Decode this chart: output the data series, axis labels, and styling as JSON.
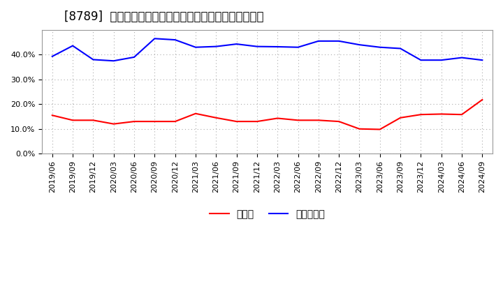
{
  "title": "[8789]  現頲金、有利子負債の総資産に対する比率の推移",
  "x_labels": [
    "2019/06",
    "2019/09",
    "2019/12",
    "2020/03",
    "2020/06",
    "2020/09",
    "2020/12",
    "2021/03",
    "2021/06",
    "2021/09",
    "2021/12",
    "2022/03",
    "2022/06",
    "2022/09",
    "2022/12",
    "2023/03",
    "2023/06",
    "2023/09",
    "2023/12",
    "2024/03",
    "2024/06",
    "2024/09"
  ],
  "cash": [
    0.155,
    0.135,
    0.135,
    0.12,
    0.13,
    0.13,
    0.13,
    0.162,
    0.145,
    0.13,
    0.13,
    0.143,
    0.135,
    0.135,
    0.13,
    0.1,
    0.098,
    0.145,
    0.158,
    0.16,
    0.158,
    0.218
  ],
  "debt": [
    0.393,
    0.436,
    0.38,
    0.375,
    0.39,
    0.465,
    0.46,
    0.43,
    0.433,
    0.443,
    0.433,
    0.432,
    0.43,
    0.455,
    0.455,
    0.44,
    0.43,
    0.425,
    0.378,
    0.378,
    0.388,
    0.378
  ],
  "cash_color": "#ff0000",
  "debt_color": "#0000ff",
  "bg_color": "#ffffff",
  "plot_bg_color": "#ffffff",
  "grid_color": "#aaaaaa",
  "legend_cash": "現頲金",
  "legend_debt": "有利子負債",
  "ylim": [
    0.0,
    0.5
  ],
  "yticks": [
    0.0,
    0.1,
    0.2,
    0.3,
    0.4
  ],
  "title_fontsize": 12,
  "legend_fontsize": 10,
  "tick_fontsize": 8
}
